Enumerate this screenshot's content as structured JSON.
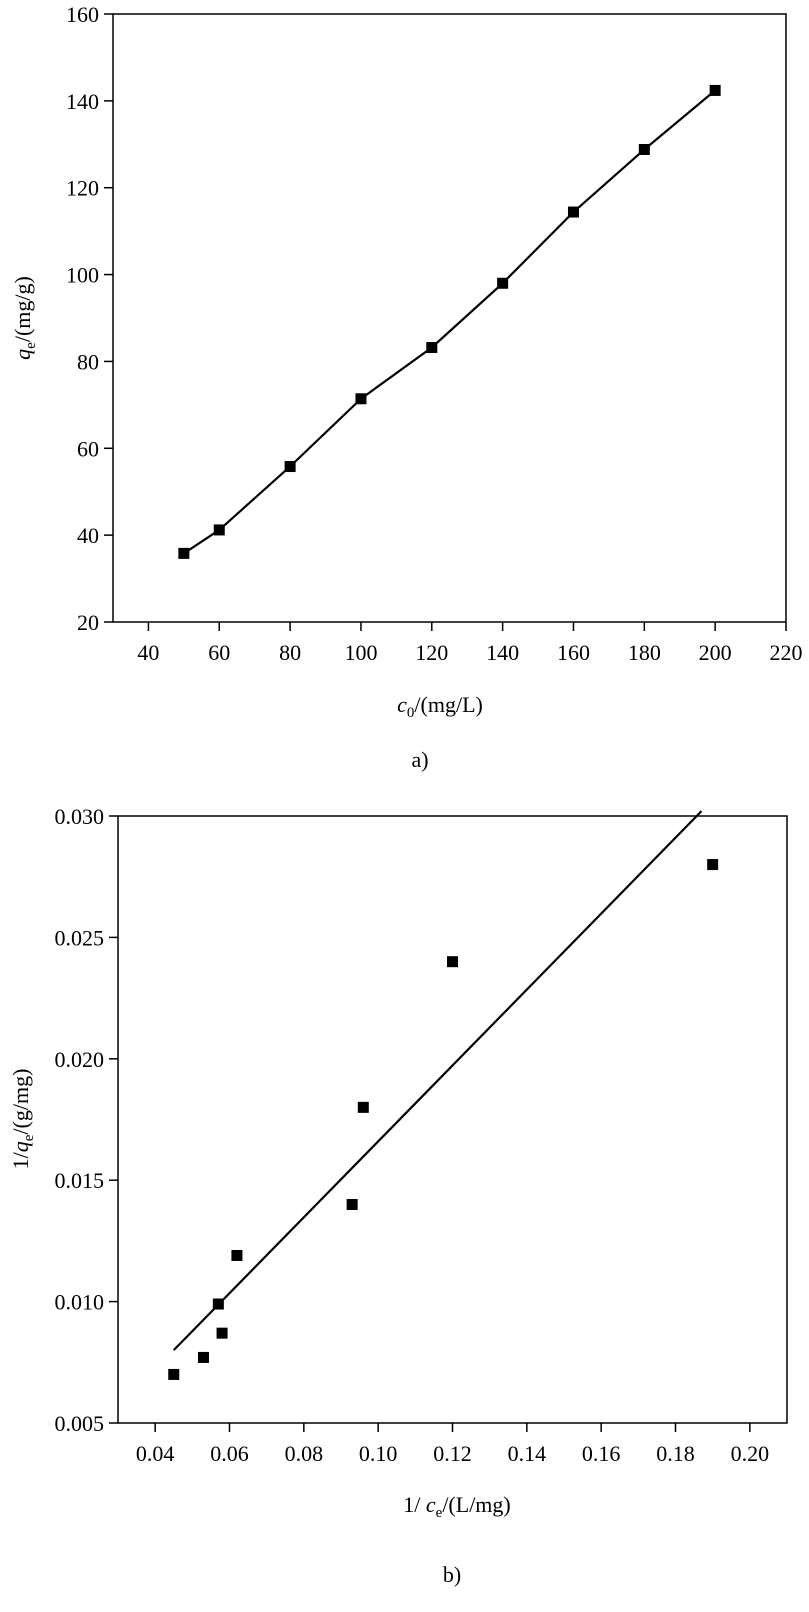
{
  "chart_data": [
    {
      "type": "line",
      "panel_label": "a)",
      "xlabel": {
        "var": "c",
        "sub": "0",
        "unit": "/(mg/L)"
      },
      "ylabel": {
        "var": "q",
        "sub": "e",
        "unit": "/(mg/g)"
      },
      "xlim": [
        30,
        220
      ],
      "ylim": [
        20,
        160
      ],
      "xticks": [
        40,
        60,
        80,
        100,
        120,
        140,
        160,
        180,
        200,
        220
      ],
      "xtick_labels": [
        "40",
        "60",
        "80",
        "100",
        "120",
        "140",
        "160",
        "180",
        "200",
        "220"
      ],
      "yticks": [
        20,
        40,
        60,
        80,
        100,
        120,
        140,
        160
      ],
      "ytick_labels": [
        "20",
        "40",
        "60",
        "80",
        "100",
        "120",
        "140",
        "160"
      ],
      "series": [
        {
          "x": [
            50,
            60,
            80,
            100,
            120,
            140,
            160,
            180,
            200
          ],
          "y": [
            35.8,
            41.2,
            55.8,
            71.4,
            83.2,
            98.0,
            114.4,
            128.8,
            142.4
          ],
          "marker": "square",
          "connected": true
        }
      ]
    },
    {
      "type": "scatter",
      "panel_label": "b)",
      "xlabel": {
        "prefix": "1/ ",
        "var": "c",
        "sub": "e",
        "unit": "/(L/mg)"
      },
      "ylabel": {
        "prefix": "1/",
        "var": "q",
        "sub": "e",
        "unit": "/(g/mg)"
      },
      "xlim": [
        0.03,
        0.21
      ],
      "ylim": [
        0.005,
        0.03
      ],
      "xticks": [
        0.04,
        0.06,
        0.08,
        0.1,
        0.12,
        0.14,
        0.16,
        0.18,
        0.2
      ],
      "xtick_labels": [
        "0.04",
        "0.06",
        "0.08",
        "0.10",
        "0.12",
        "0.14",
        "0.16",
        "0.18",
        "0.20"
      ],
      "yticks": [
        0.005,
        0.01,
        0.015,
        0.02,
        0.025,
        0.03
      ],
      "ytick_labels": [
        "0.005",
        "0.010",
        "0.015",
        "0.020",
        "0.025",
        "0.030"
      ],
      "series": [
        {
          "x": [
            0.045,
            0.053,
            0.057,
            0.058,
            0.062,
            0.093,
            0.096,
            0.12,
            0.19
          ],
          "y": [
            0.007,
            0.0077,
            0.0099,
            0.0087,
            0.0119,
            0.014,
            0.018,
            0.024,
            0.028
          ],
          "marker": "square",
          "connected": false
        }
      ],
      "fit_line": {
        "x": [
          0.045,
          0.187
        ],
        "y": [
          0.008,
          0.0302
        ]
      }
    }
  ]
}
